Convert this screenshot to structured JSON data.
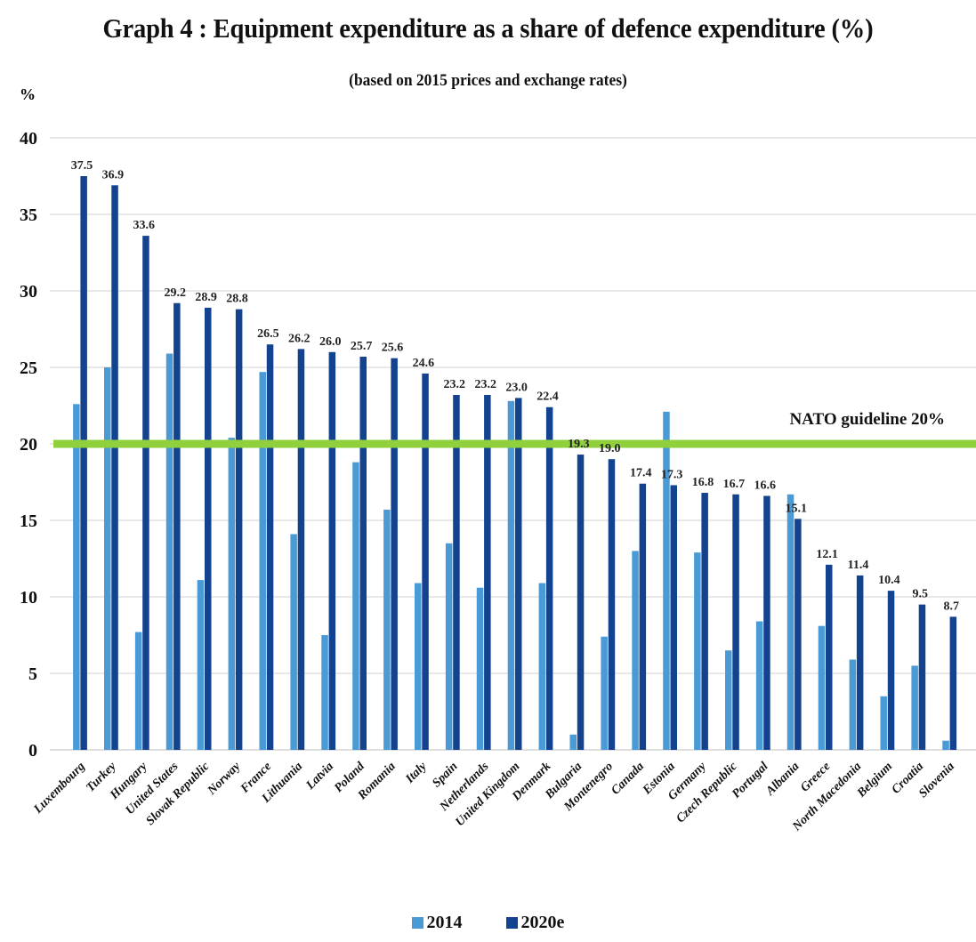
{
  "header": {
    "title": "Graph 4 : Equipment expenditure as a share of defence expenditure (%)",
    "subtitle": "(based on 2015 prices and exchange rates)"
  },
  "colors": {
    "s2014": "#4a9ad6",
    "s2020e": "#13438f",
    "guideline": "#8fd03c",
    "grid": "#d9d9d9"
  },
  "chart_data": {
    "type": "bar",
    "title": "Graph 4 : Equipment expenditure as a share of defence expenditure (%)",
    "subtitle": "(based on 2015 prices and exchange rates)",
    "ylabel": "%",
    "ylim": [
      0,
      40
    ],
    "yticks": [
      0,
      5,
      10,
      15,
      20,
      25,
      30,
      35,
      40
    ],
    "grid": true,
    "legend_position": "bottom",
    "categories": [
      "Luxembourg",
      "Turkey",
      "Hungary",
      "United States",
      "Slovak Republic",
      "Norway",
      "France",
      "Lithuania",
      "Latvia",
      "Poland",
      "Romania",
      "Italy",
      "Spain",
      "Netherlands",
      "United Kingdom",
      "Denmark",
      "Bulgaria",
      "Montenegro",
      "Canada",
      "Estonia",
      "Germany",
      "Czech Republic",
      "Portugal",
      "Albania",
      "Greece",
      "North Macedonia",
      "Belgium",
      "Croatia",
      "Slovenia"
    ],
    "series": [
      {
        "name": "2014",
        "values": [
          22.6,
          25.0,
          7.7,
          25.9,
          11.1,
          20.4,
          24.7,
          14.1,
          7.5,
          18.8,
          15.7,
          10.9,
          13.5,
          10.6,
          22.8,
          10.9,
          1.0,
          7.4,
          13.0,
          22.1,
          12.9,
          6.5,
          8.4,
          16.7,
          8.1,
          5.9,
          3.5,
          5.5,
          0.6
        ]
      },
      {
        "name": "2020e",
        "values": [
          37.5,
          36.9,
          33.6,
          29.2,
          28.9,
          28.8,
          26.5,
          26.2,
          26.0,
          25.7,
          25.6,
          24.6,
          23.2,
          23.2,
          23.0,
          22.4,
          19.3,
          19.0,
          17.4,
          17.3,
          16.8,
          16.7,
          16.6,
          15.1,
          12.1,
          11.4,
          10.4,
          9.5,
          8.7
        ]
      }
    ],
    "data_labels_2020e": [
      "37.5",
      "36.9",
      "33.6",
      "29.2",
      "28.9",
      "28.8",
      "26.5",
      "26.2",
      "26.0",
      "25.7",
      "25.6",
      "24.6",
      "23.2",
      "23.2",
      "23.0",
      "22.4",
      "19.3",
      "19.0",
      "17.4",
      "17.3",
      "16.8",
      "16.7",
      "16.6",
      "15.1",
      "12.1",
      "11.4",
      "10.4",
      "9.5",
      "8.7"
    ],
    "guideline": {
      "value": 20,
      "label": "NATO guideline 20%"
    }
  }
}
